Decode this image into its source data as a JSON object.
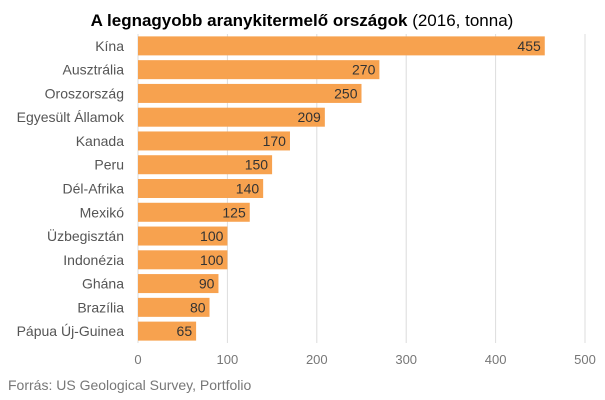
{
  "chart_data": {
    "type": "bar",
    "orientation": "horizontal",
    "title": "A legnagyobb aranykitermelő országok",
    "subtitle": "(2016, tonna)",
    "categories": [
      "Kína",
      "Ausztrália",
      "Oroszország",
      "Egyesült Államok",
      "Kanada",
      "Peru",
      "Dél-Afrika",
      "Mexikó",
      "Üzbegisztán",
      "Indonézia",
      "Ghána",
      "Brazília",
      "Pápua Új-Guinea"
    ],
    "values": [
      455,
      270,
      250,
      209,
      170,
      150,
      140,
      125,
      100,
      100,
      90,
      80,
      65
    ],
    "xticks": [
      0,
      100,
      200,
      300,
      400,
      500
    ],
    "xlim": [
      0,
      500
    ],
    "grid": true,
    "bar_color": "#f7a24f",
    "source": "Forrás: US Geological Survey, Portfolio"
  }
}
